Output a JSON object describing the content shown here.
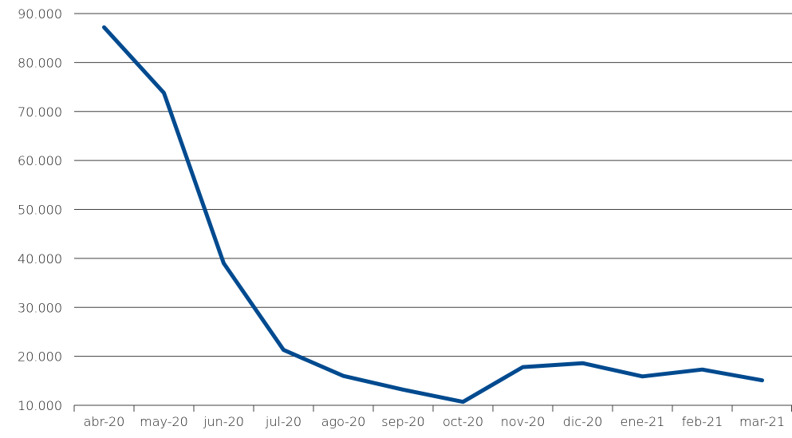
{
  "chart_data": {
    "type": "line",
    "title": "",
    "xlabel": "",
    "ylabel": "",
    "categories": [
      "abr-20",
      "may-20",
      "jun-20",
      "jul-20",
      "ago-20",
      "sep-20",
      "oct-20",
      "nov-20",
      "dic-20",
      "ene-21",
      "feb-21",
      "mar-21"
    ],
    "series": [
      {
        "color": "#004a8f",
        "values": [
          87200,
          73800,
          39000,
          21300,
          16000,
          13200,
          10700,
          17800,
          18600,
          15900,
          17300,
          15100
        ]
      }
    ],
    "ylim": [
      10000,
      90000
    ],
    "yticks": [
      10000,
      20000,
      30000,
      40000,
      50000,
      60000,
      70000,
      80000,
      90000
    ],
    "ytick_labels": [
      "10.000",
      "20.000",
      "30.000",
      "40.000",
      "50.000",
      "60.000",
      "70.000",
      "80.000",
      "90.000"
    ],
    "grid": true,
    "legend": "none"
  }
}
